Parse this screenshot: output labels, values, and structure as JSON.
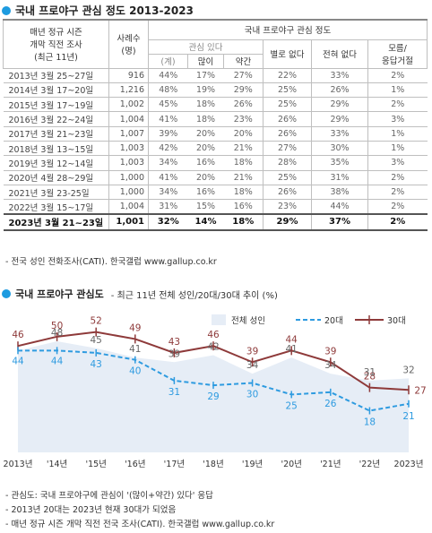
{
  "title1": "국내 프로야구 관심 정도 2013-2023",
  "table": {
    "col_period": "매년 정규 시즌 개막 직전 조사 (최근 11년)",
    "col_period_lines": [
      "매년 정규 시즌",
      "개막 직전 조사",
      "(최근 11년)"
    ],
    "col_n_lines": [
      "사례수",
      "(명)"
    ],
    "group_header": "국내 프로야구 관심 정도",
    "sub_header": "관심 있다",
    "cols": [
      "(계)",
      "많이",
      "약간",
      "별로 없다",
      "전혀 없다",
      "모름/ 응답거절"
    ],
    "col_last_lines": [
      "모름/",
      "응답거절"
    ],
    "rows": [
      {
        "period": "2013년 3월 25~27일",
        "n": "916",
        "total": "44%",
        "much": "17%",
        "some": "27%",
        "little": "22%",
        "none": "33%",
        "dk": "2%"
      },
      {
        "period": "2014년 3월 17~20일",
        "n": "1,216",
        "total": "48%",
        "much": "19%",
        "some": "29%",
        "little": "25%",
        "none": "26%",
        "dk": "1%"
      },
      {
        "period": "2015년 3월 17~19일",
        "n": "1,002",
        "total": "45%",
        "much": "18%",
        "some": "26%",
        "little": "25%",
        "none": "29%",
        "dk": "2%"
      },
      {
        "period": "2016년 3월 22~24일",
        "n": "1,004",
        "total": "41%",
        "much": "18%",
        "some": "23%",
        "little": "26%",
        "none": "29%",
        "dk": "3%"
      },
      {
        "period": "2017년 3월 21~23일",
        "n": "1,007",
        "total": "39%",
        "much": "20%",
        "some": "20%",
        "little": "26%",
        "none": "33%",
        "dk": "1%"
      },
      {
        "period": "2018년 3월 13~15일",
        "n": "1,003",
        "total": "42%",
        "much": "20%",
        "some": "21%",
        "little": "27%",
        "none": "30%",
        "dk": "1%"
      },
      {
        "period": "2019년 3월 12~14일",
        "n": "1,003",
        "total": "34%",
        "much": "16%",
        "some": "18%",
        "little": "28%",
        "none": "35%",
        "dk": "3%"
      },
      {
        "period": "2020년 4월 28~29일",
        "n": "1,000",
        "total": "41%",
        "much": "20%",
        "some": "21%",
        "little": "25%",
        "none": "31%",
        "dk": "2%"
      },
      {
        "period": "2021년 3월 23-25일",
        "n": "1,000",
        "total": "34%",
        "much": "16%",
        "some": "18%",
        "little": "26%",
        "none": "38%",
        "dk": "2%"
      },
      {
        "period": "2022년 3월 15~17일",
        "n": "1,004",
        "total": "31%",
        "much": "15%",
        "some": "16%",
        "little": "23%",
        "none": "44%",
        "dk": "2%"
      },
      {
        "period": "2023년 3월 21~23일",
        "n": "1,001",
        "total": "32%",
        "much": "14%",
        "some": "18%",
        "little": "29%",
        "none": "37%",
        "dk": "2%"
      }
    ]
  },
  "note1": "- 전국 성인 전화조사(CATI). 한국갤럽 www.gallup.co.kr",
  "title2": "국내 프로야구 관심도",
  "title2_sub": "- 최근 11년 전체 성인/20대/30대 추이 (%)",
  "notes_bottom": [
    "- 관심도: 국내 프로야구에 관심이 '(많이+약간) 있다' 응답",
    "- 2013년 20대는 2023년 현재 30대가 되었음",
    "- 매년 정규 시즌 개막 직전 전국 조사(CATI). 한국갤럽 www.gallup.co.kr"
  ],
  "colors": {
    "accent": "#1d9be0",
    "area": "#e6edf6",
    "s20": "#2e9be0",
    "s30": "#8e3a3a",
    "total_label": "#666666"
  },
  "chart_data": {
    "type": "line",
    "title": "국내 프로야구 관심도",
    "categories": [
      "2013년",
      "'14년",
      "'15년",
      "'16년",
      "'17년",
      "'18년",
      "'19년",
      "'20년",
      "'21년",
      "'22년",
      "2023년"
    ],
    "ylim": [
      0,
      60
    ],
    "grid": false,
    "legend_position": "top-right",
    "series": [
      {
        "name": "전체 성인",
        "style": "area",
        "values": [
          44,
          48,
          45,
          41,
          39,
          42,
          34,
          41,
          34,
          31,
          32
        ]
      },
      {
        "name": "20대",
        "style": "dashed",
        "values": [
          44,
          44,
          43,
          40,
          31,
          29,
          30,
          25,
          26,
          18,
          21
        ]
      },
      {
        "name": "30대",
        "style": "line-marker",
        "values": [
          46,
          50,
          52,
          49,
          43,
          46,
          39,
          44,
          39,
          28,
          27
        ]
      }
    ]
  }
}
